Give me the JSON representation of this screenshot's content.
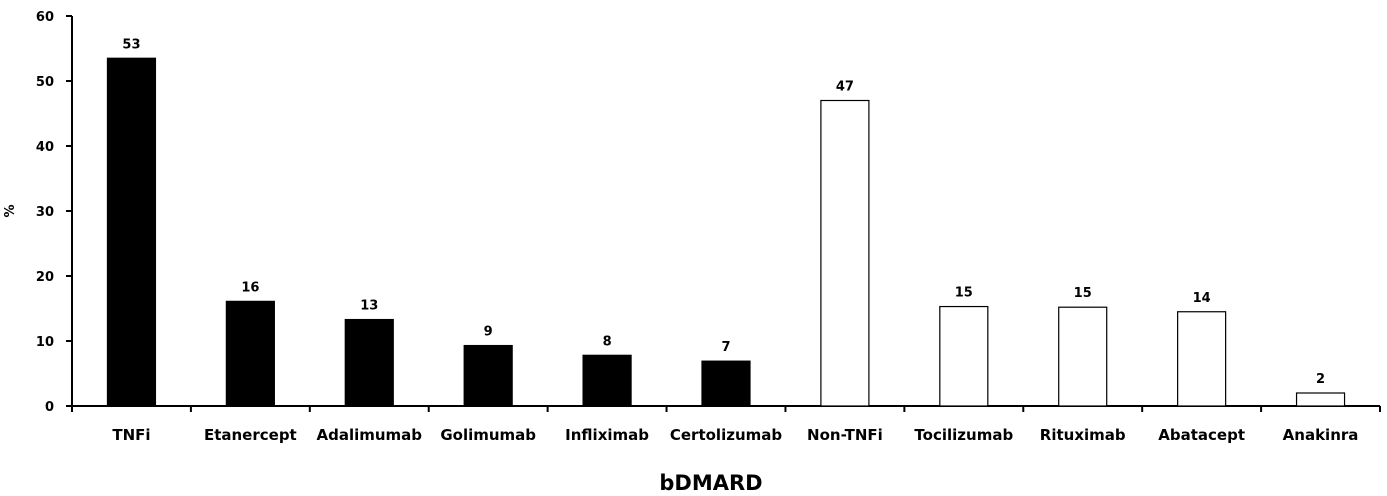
{
  "chart_data": {
    "type": "bar",
    "categories": [
      "TNFi",
      "Etanercept",
      "Adalimumab",
      "Golimumab",
      "Infliximab",
      "Certolizumab",
      "Non-TNFi",
      "Tocilizumab",
      "Rituximab",
      "Abatacept",
      "Anakinra"
    ],
    "values": [
      53.5,
      16.1,
      13.3,
      9.3,
      7.8,
      6.9,
      47.0,
      15.3,
      15.2,
      14.5,
      2.0
    ],
    "data_labels": [
      "53",
      "16",
      "13",
      "9",
      "8",
      "7",
      "47",
      "15",
      "15",
      "14",
      "2"
    ],
    "bar_fill": [
      "#000000",
      "#000000",
      "#000000",
      "#000000",
      "#000000",
      "#000000",
      "#ffffff",
      "#ffffff",
      "#ffffff",
      "#ffffff",
      "#ffffff"
    ],
    "bar_stroke": "#000000",
    "title": "",
    "xlabel": "bDMARD",
    "ylabel": "%",
    "ylim": [
      0,
      60
    ],
    "yticks": [
      0,
      10,
      20,
      30,
      40,
      50,
      60
    ],
    "grid": false,
    "legend": "none"
  }
}
